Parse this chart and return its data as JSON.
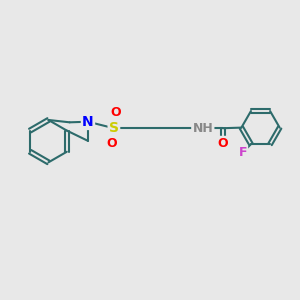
{
  "bg_color": "#e8e8e8",
  "bond_color": "#2d6b6b",
  "bond_width": 1.5,
  "atom_colors": {
    "N": "#0000ff",
    "S": "#cccc00",
    "O": "#ff0000",
    "F": "#cc44cc",
    "H": "#888888",
    "C": "#2d6b6b"
  },
  "font_size": 9
}
